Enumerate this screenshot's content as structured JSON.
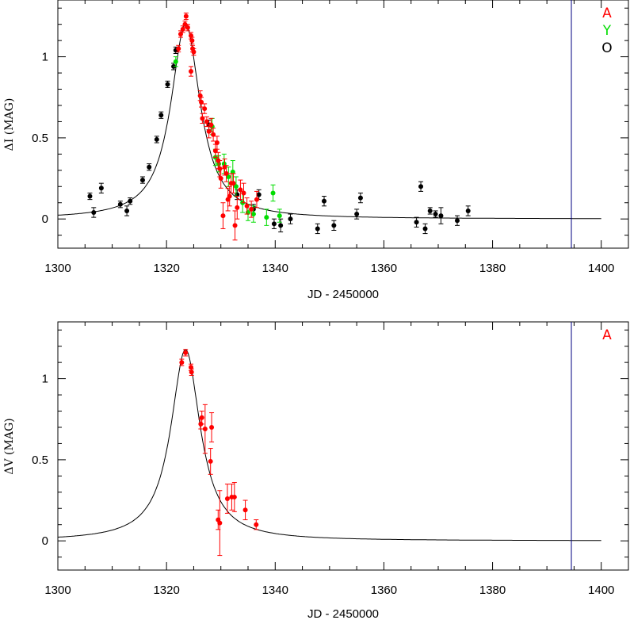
{
  "chart_data": [
    {
      "type": "scatter",
      "xlabel": "JD - 2450000",
      "ylabel": "ΔI (MAG)",
      "xlim": [
        1300,
        1405
      ],
      "ylim": [
        -0.18,
        1.35
      ],
      "xticks": [
        1300,
        1320,
        1340,
        1360,
        1380,
        1400
      ],
      "yticks": [
        0,
        0.5,
        1
      ],
      "xtick_labels": [
        "1300",
        "1320",
        "1340",
        "1360",
        "1380",
        "1400"
      ],
      "ytick_labels": [
        "0",
        "0.5",
        "1"
      ],
      "vertical_line_x": 1394.5,
      "model": {
        "peak_x": 1323.5,
        "amplitude": 1.2,
        "width": 3.3,
        "baseline": 0.0,
        "x_range": [
          1300,
          1400
        ]
      },
      "legend": [
        "A",
        "Y",
        "O"
      ],
      "series": [
        {
          "name": "A",
          "color": "#ff0000",
          "points": [
            [
              1322.2,
              1.05,
              0.02
            ],
            [
              1322.6,
              1.14,
              0.02
            ],
            [
              1323.0,
              1.17,
              0.02
            ],
            [
              1323.4,
              1.2,
              0.02
            ],
            [
              1323.6,
              1.25,
              0.02
            ],
            [
              1323.9,
              1.18,
              0.02
            ],
            [
              1324.5,
              1.13,
              0.02
            ],
            [
              1324.7,
              1.1,
              0.02
            ],
            [
              1324.8,
              1.05,
              0.02
            ],
            [
              1325.0,
              1.03,
              0.02
            ],
            [
              1324.5,
              0.91,
              0.03
            ],
            [
              1326.2,
              0.76,
              0.03
            ],
            [
              1326.4,
              0.72,
              0.03
            ],
            [
              1326.6,
              0.62,
              0.03
            ],
            [
              1327.0,
              0.68,
              0.03
            ],
            [
              1327.4,
              0.6,
              0.03
            ],
            [
              1327.8,
              0.54,
              0.04
            ],
            [
              1328.2,
              0.58,
              0.04
            ],
            [
              1328.6,
              0.52,
              0.04
            ],
            [
              1329.0,
              0.42,
              0.04
            ],
            [
              1329.3,
              0.47,
              0.04
            ],
            [
              1329.5,
              0.36,
              0.05
            ],
            [
              1329.8,
              0.31,
              0.05
            ],
            [
              1330.0,
              0.25,
              0.06
            ],
            [
              1330.4,
              0.02,
              0.08
            ],
            [
              1330.7,
              0.32,
              0.05
            ],
            [
              1331.0,
              0.28,
              0.05
            ],
            [
              1331.3,
              0.12,
              0.07
            ],
            [
              1331.6,
              0.14,
              0.06
            ],
            [
              1331.9,
              0.22,
              0.06
            ],
            [
              1332.3,
              0.22,
              0.06
            ],
            [
              1332.6,
              -0.04,
              0.09
            ],
            [
              1333.0,
              0.07,
              0.07
            ],
            [
              1333.6,
              0.18,
              0.06
            ],
            [
              1334.2,
              0.16,
              0.06
            ],
            [
              1334.8,
              0.08,
              0.05
            ],
            [
              1335.6,
              0.06,
              0.05
            ],
            [
              1336.6,
              0.12,
              0.05
            ]
          ]
        },
        {
          "name": "Y",
          "color": "#00dd00",
          "points": [
            [
              1321.7,
              0.97,
              0.03
            ],
            [
              1328.4,
              0.57,
              0.05
            ],
            [
              1329.0,
              0.38,
              0.05
            ],
            [
              1329.6,
              0.34,
              0.05
            ],
            [
              1330.6,
              0.34,
              0.06
            ],
            [
              1331.4,
              0.26,
              0.06
            ],
            [
              1332.2,
              0.29,
              0.07
            ],
            [
              1332.8,
              0.2,
              0.06
            ],
            [
              1334.0,
              0.1,
              0.06
            ],
            [
              1335.0,
              0.04,
              0.05
            ],
            [
              1336.0,
              0.03,
              0.05
            ],
            [
              1338.4,
              0.01,
              0.05
            ],
            [
              1339.6,
              0.16,
              0.05
            ],
            [
              1340.8,
              0.02,
              0.04
            ]
          ]
        },
        {
          "name": "O",
          "color": "#000000",
          "points": [
            [
              1305.9,
              0.14,
              0.02
            ],
            [
              1306.6,
              0.04,
              0.03
            ],
            [
              1308.0,
              0.19,
              0.03
            ],
            [
              1311.5,
              0.09,
              0.02
            ],
            [
              1312.7,
              0.05,
              0.03
            ],
            [
              1313.3,
              0.11,
              0.02
            ],
            [
              1315.6,
              0.24,
              0.02
            ],
            [
              1316.8,
              0.32,
              0.02
            ],
            [
              1318.2,
              0.49,
              0.02
            ],
            [
              1319.0,
              0.64,
              0.02
            ],
            [
              1320.2,
              0.83,
              0.02
            ],
            [
              1321.3,
              0.94,
              0.02
            ],
            [
              1321.7,
              1.04,
              0.02
            ],
            [
              1327.8,
              0.58,
              0.03
            ],
            [
              1333.0,
              0.15,
              0.03
            ],
            [
              1336.0,
              0.06,
              0.03
            ],
            [
              1337.0,
              0.15,
              0.03
            ],
            [
              1339.8,
              -0.03,
              0.03
            ],
            [
              1341.0,
              -0.04,
              0.04
            ],
            [
              1342.8,
              0.0,
              0.03
            ],
            [
              1347.8,
              -0.06,
              0.03
            ],
            [
              1349.0,
              0.11,
              0.03
            ],
            [
              1350.8,
              -0.04,
              0.03
            ],
            [
              1355.0,
              0.03,
              0.03
            ],
            [
              1355.7,
              0.13,
              0.03
            ],
            [
              1366.0,
              -0.02,
              0.03
            ],
            [
              1366.8,
              0.2,
              0.03
            ],
            [
              1367.6,
              -0.06,
              0.03
            ],
            [
              1368.5,
              0.05,
              0.02
            ],
            [
              1369.5,
              0.03,
              0.02
            ],
            [
              1370.5,
              0.02,
              0.05
            ],
            [
              1373.5,
              -0.01,
              0.03
            ],
            [
              1375.5,
              0.05,
              0.03
            ]
          ]
        }
      ]
    },
    {
      "type": "scatter",
      "xlabel": "JD - 2450000",
      "ylabel": "ΔV (MAG)",
      "xlim": [
        1300,
        1405
      ],
      "ylim": [
        -0.18,
        1.35
      ],
      "xticks": [
        1300,
        1320,
        1340,
        1360,
        1380,
        1400
      ],
      "yticks": [
        0,
        0.5,
        1
      ],
      "xtick_labels": [
        "1300",
        "1320",
        "1340",
        "1360",
        "1380",
        "1400"
      ],
      "ytick_labels": [
        "0",
        "0.5",
        "1"
      ],
      "vertical_line_x": 1394.5,
      "model": {
        "peak_x": 1323.5,
        "amplitude": 1.18,
        "width": 3.3,
        "baseline": 0.0,
        "x_range": [
          1300,
          1400
        ]
      },
      "legend": [
        "A"
      ],
      "series": [
        {
          "name": "A",
          "color": "#ff0000",
          "points": [
            [
              1322.8,
              1.1,
              0.02
            ],
            [
              1323.5,
              1.16,
              0.02
            ],
            [
              1324.5,
              1.07,
              0.02
            ],
            [
              1324.6,
              1.04,
              0.02
            ],
            [
              1326.3,
              0.72,
              0.03
            ],
            [
              1326.5,
              0.76,
              0.04
            ],
            [
              1327.1,
              0.69,
              0.15
            ],
            [
              1328.1,
              0.49,
              0.08
            ],
            [
              1328.3,
              0.7,
              0.09
            ],
            [
              1329.5,
              0.13,
              0.06
            ],
            [
              1329.8,
              0.11,
              0.2
            ],
            [
              1331.2,
              0.26,
              0.09
            ],
            [
              1332.0,
              0.27,
              0.08
            ],
            [
              1332.5,
              0.27,
              0.09
            ],
            [
              1334.5,
              0.19,
              0.06
            ],
            [
              1336.5,
              0.1,
              0.03
            ]
          ]
        }
      ]
    }
  ]
}
